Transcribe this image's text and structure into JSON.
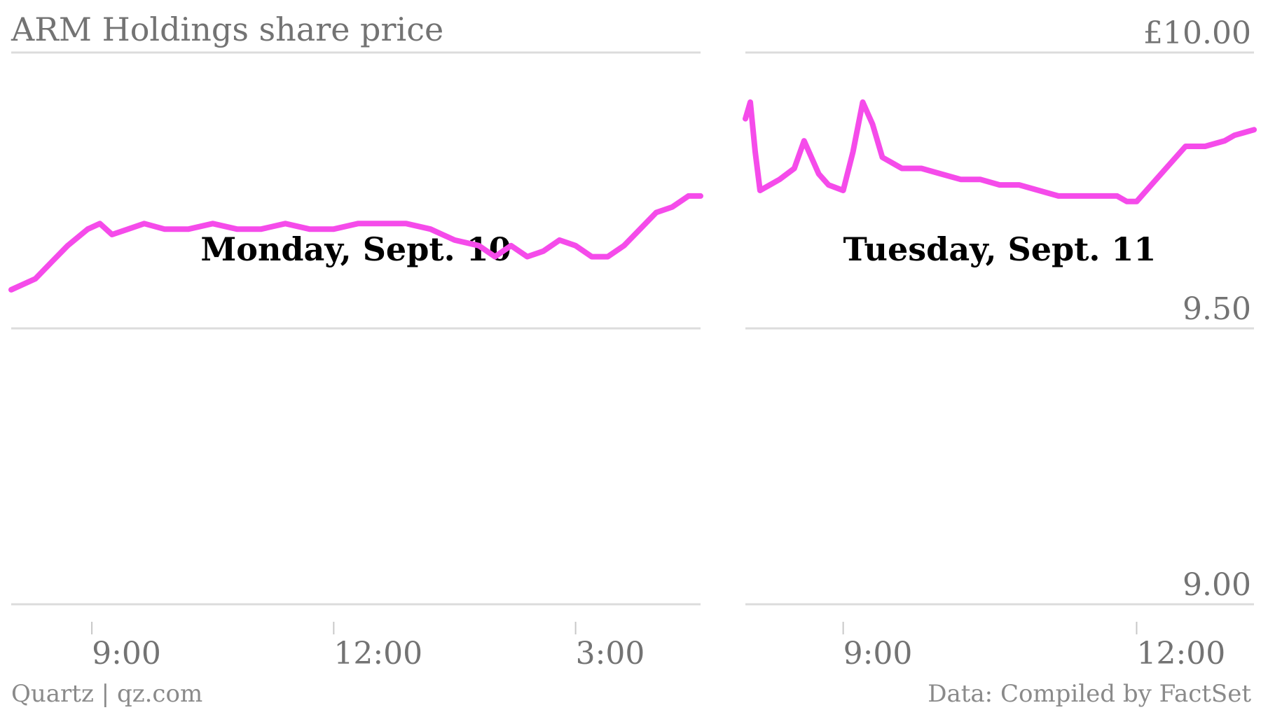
{
  "title": "ARM Holdings share price",
  "source_left": "Quartz | qz.com",
  "source_right": "Data: Compiled by FactSet",
  "series_color": "#f54bea",
  "chart_data": [
    {
      "type": "line",
      "title": "Monday, Sept. 10",
      "y_ticks": [
        "9.00",
        "9.50",
        "£10.00"
      ],
      "ylim": [
        9.0,
        10.0
      ],
      "grid": true,
      "x_ticks": [
        "9:00",
        "12:00",
        "3:00"
      ],
      "x_tick_positions": [
        9,
        12,
        15
      ],
      "xlim": [
        8.0,
        16.55
      ],
      "x": [
        8.0,
        8.3,
        8.5,
        8.7,
        8.95,
        9.1,
        9.25,
        9.45,
        9.65,
        9.9,
        10.2,
        10.5,
        10.8,
        11.1,
        11.4,
        11.7,
        12.0,
        12.3,
        12.6,
        12.9,
        13.2,
        13.5,
        13.8,
        14.0,
        14.2,
        14.4,
        14.6,
        14.8,
        15.0,
        15.2,
        15.4,
        15.6,
        15.8,
        16.0,
        16.2,
        16.4,
        16.55
      ],
      "y": [
        9.57,
        9.59,
        9.62,
        9.65,
        9.68,
        9.69,
        9.67,
        9.68,
        9.69,
        9.68,
        9.68,
        9.69,
        9.68,
        9.68,
        9.69,
        9.68,
        9.68,
        9.69,
        9.69,
        9.69,
        9.68,
        9.66,
        9.65,
        9.63,
        9.65,
        9.63,
        9.64,
        9.66,
        9.65,
        9.63,
        9.63,
        9.65,
        9.68,
        9.71,
        9.72,
        9.74,
        9.74
      ]
    },
    {
      "type": "line",
      "title": "Tuesday, Sept. 11",
      "y_ticks": [
        "9.00",
        "9.50",
        "£10.00"
      ],
      "ylim": [
        9.0,
        10.0
      ],
      "grid": true,
      "x_ticks": [
        "9:00",
        "12:00"
      ],
      "x_tick_positions": [
        9,
        12
      ],
      "xlim": [
        8.0,
        13.2
      ],
      "x": [
        8.0,
        8.05,
        8.1,
        8.15,
        8.25,
        8.35,
        8.5,
        8.6,
        8.75,
        8.85,
        9.0,
        9.1,
        9.2,
        9.3,
        9.4,
        9.6,
        9.8,
        10.0,
        10.2,
        10.4,
        10.6,
        10.8,
        11.0,
        11.2,
        11.4,
        11.6,
        11.8,
        11.9,
        12.0,
        12.15,
        12.3,
        12.5,
        12.7,
        12.9,
        13.0,
        13.2
      ],
      "y": [
        9.88,
        9.91,
        9.82,
        9.75,
        9.76,
        9.77,
        9.79,
        9.84,
        9.78,
        9.76,
        9.75,
        9.82,
        9.91,
        9.87,
        9.81,
        9.79,
        9.79,
        9.78,
        9.77,
        9.77,
        9.76,
        9.76,
        9.75,
        9.74,
        9.74,
        9.74,
        9.74,
        9.73,
        9.73,
        9.76,
        9.79,
        9.83,
        9.83,
        9.84,
        9.85,
        9.86
      ]
    }
  ]
}
